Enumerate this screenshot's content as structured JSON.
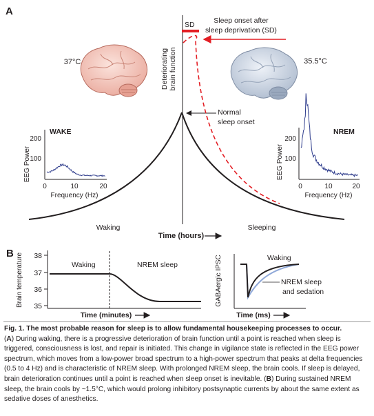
{
  "panelA": {
    "label": "A",
    "ylabel_lines": [
      "Deteriorating",
      "brain function"
    ],
    "sd_tag": "SD",
    "sd_note_lines": [
      "Sleep onset after",
      "sleep deprivation (SD)"
    ],
    "temp_wake": "37°C",
    "temp_sleep": "35.5°C",
    "normal_onset_lines": [
      "Normal",
      "sleep onset"
    ],
    "xlabel": "Time (hours)",
    "waking_label": "Waking",
    "sleeping_label": "Sleeping",
    "colors": {
      "sd": "#e31e24",
      "eeg": "#2e3c8c",
      "curve": "#231f20"
    },
    "wake_inset": {
      "title": "WAKE",
      "ylabel": "EEG Power",
      "xlabel": "Frequency (Hz)",
      "xticks": [
        "0",
        "10",
        "20"
      ],
      "yticks": [
        "100",
        "200"
      ]
    },
    "nrem_inset": {
      "title": "NREM",
      "ylabel": "EEG Power",
      "xlabel": "Frequency (Hz)",
      "xticks": [
        "0",
        "10",
        "20"
      ],
      "yticks": [
        "100",
        "200"
      ]
    }
  },
  "panelB": {
    "label": "B",
    "temp": {
      "ylabel": "Brain temperature",
      "yticks": [
        "35",
        "36",
        "37",
        "38"
      ],
      "waking_label": "Waking",
      "nrem_label": "NREM sleep",
      "xlabel": "Time (minutes)"
    },
    "ipsc": {
      "ylabel": "GABAergic IPSC",
      "waking_label": "Waking",
      "nrem_lines": [
        "NREM sleep",
        "and sedation"
      ],
      "xlabel": "Time (ms)",
      "colors": {
        "nrem": "#8fa8d8"
      }
    }
  },
  "caption": {
    "heading": "Fig. 1. The most probable reason for sleep is to allow fundamental housekeeping processes to occur.",
    "seg1": "(",
    "a_label": "A",
    "seg2": ") During waking, there is a progressive deterioration of brain function until a point is reached when sleep is triggered, consciousness is lost, and repair is initiated. This change in vigilance state is reflected in the EEG power spectrum, which moves from a low-power broad spectrum to a high-power spectrum that peaks at delta frequencies (0.5 to 4 Hz) and is characteristic of NREM sleep. With prolonged NREM sleep, the brain cools. If sleep is delayed, brain deterioration continues until a point is reached when sleep onset is inevitable. (",
    "b_label": "B",
    "seg3": ") During sustained NREM sleep, the brain cools by ~1.5°C, which would prolong inhibitory postsynaptic currents by about the same extent as sedative doses of anesthetics."
  }
}
